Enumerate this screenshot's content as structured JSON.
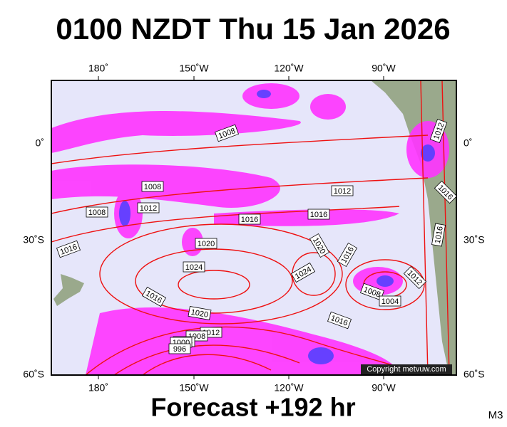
{
  "header": {
    "title": "0100 NZDT Thu 15 Jan 2026"
  },
  "footer": {
    "forecast": "Forecast +192 hr",
    "model": "M3"
  },
  "map": {
    "copyright": "Copyright metvuw.com",
    "longitude_labels": [
      "180˚",
      "150˚W",
      "120˚W",
      "90˚W"
    ],
    "latitude_labels": [
      "0˚",
      "30˚S",
      "60˚S"
    ],
    "isobar_labels": [
      "1008",
      "1008",
      "1012",
      "1008",
      "1012",
      "1016",
      "1016",
      "1020",
      "1016",
      "1024",
      "1020",
      "1016",
      "1024",
      "1012",
      "1016",
      "1016",
      "1012",
      "1008",
      "1004",
      "1016",
      "1020",
      "1016",
      "1012",
      "1008",
      "1004",
      "1000",
      "996"
    ]
  }
}
